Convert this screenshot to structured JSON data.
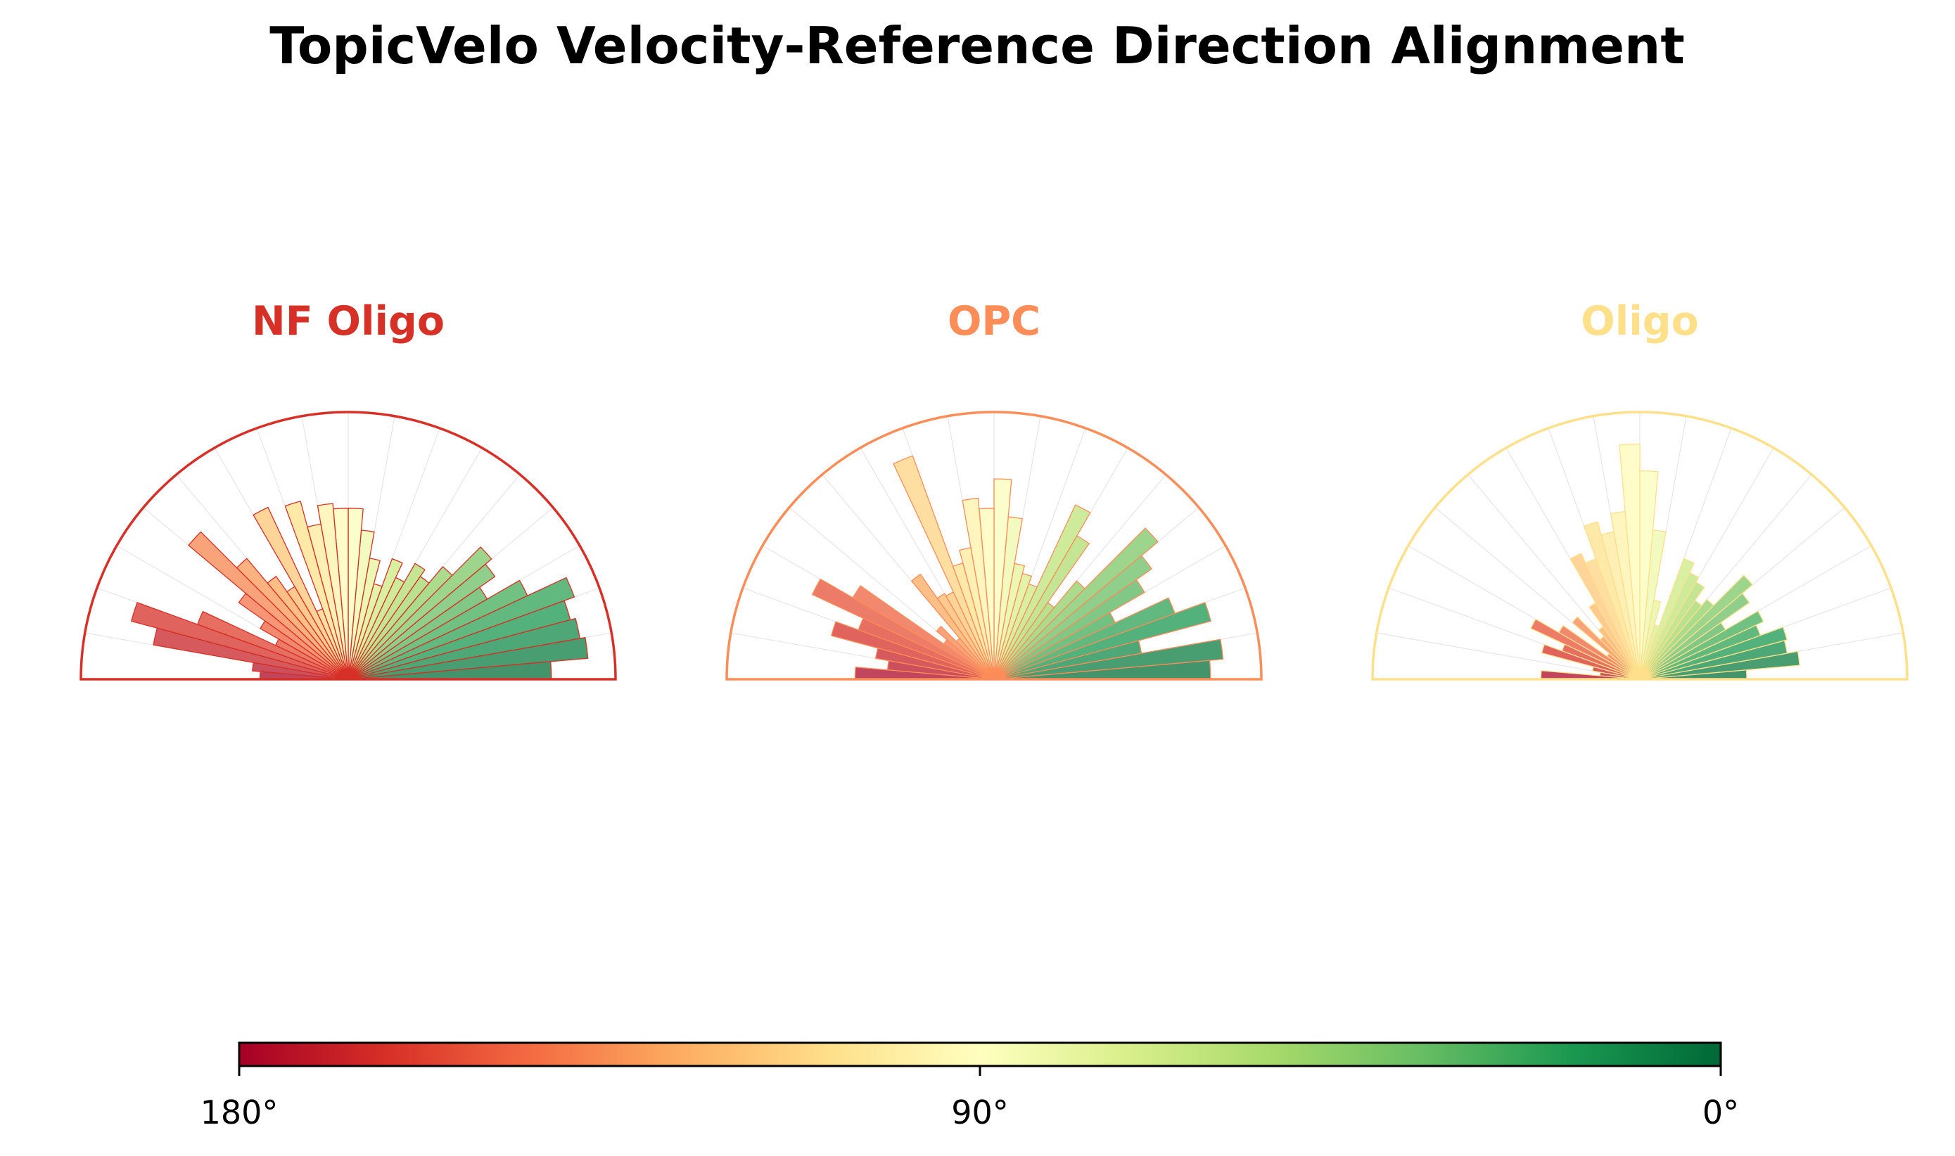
{
  "chart_data": {
    "type": "polar-bar",
    "title": "TopicVelo Velocity-Reference Direction Alignment",
    "angle_unit": "degrees",
    "bin_centers_deg": [
      2.5,
      7.5,
      12.5,
      17.5,
      22.5,
      27.5,
      32.5,
      37.5,
      42.5,
      47.5,
      52.5,
      57.5,
      62.5,
      67.5,
      72.5,
      77.5,
      82.5,
      87.5,
      92.5,
      97.5,
      102.5,
      107.5,
      112.5,
      117.5,
      122.5,
      127.5,
      132.5,
      137.5,
      142.5,
      147.5,
      152.5,
      157.5,
      162.5,
      167.5,
      172.5,
      177.5
    ],
    "radial_max": 1.0,
    "panels": [
      {
        "name": "NF Oligo",
        "color": "#d73027",
        "values": [
          0.76,
          0.9,
          0.88,
          0.86,
          0.9,
          0.74,
          0.6,
          0.67,
          0.7,
          0.55,
          0.47,
          0.5,
          0.42,
          0.48,
          0.37,
          0.46,
          0.56,
          0.64,
          0.64,
          0.66,
          0.59,
          0.69,
          0.28,
          0.71,
          0.4,
          0.47,
          0.59,
          0.78,
          0.5,
          0.38,
          0.3,
          0.6,
          0.84,
          0.74,
          0.36,
          0.33
        ]
      },
      {
        "name": "OPC",
        "color": "#fc8d59",
        "values": [
          0.81,
          0.86,
          0.56,
          0.84,
          0.72,
          0.5,
          0.65,
          0.72,
          0.8,
          0.48,
          0.35,
          0.62,
          0.72,
          0.38,
          0.41,
          0.44,
          0.61,
          0.75,
          0.64,
          0.68,
          0.5,
          0.45,
          0.89,
          0.36,
          0.37,
          0.48,
          0.2,
          0.28,
          0.23,
          0.61,
          0.75,
          0.54,
          0.63,
          0.45,
          0.4,
          0.52
        ]
      },
      {
        "name": "Oligo",
        "color": "#fee08b",
        "values": [
          0.4,
          0.6,
          0.56,
          0.57,
          0.48,
          0.51,
          0.37,
          0.5,
          0.55,
          0.39,
          0.36,
          0.42,
          0.44,
          0.48,
          0.21,
          0.3,
          0.56,
          0.78,
          0.88,
          0.63,
          0.56,
          0.61,
          0.48,
          0.52,
          0.33,
          0.24,
          0.21,
          0.33,
          0.15,
          0.35,
          0.45,
          0.31,
          0.38,
          0.18,
          0.15,
          0.37
        ]
      }
    ],
    "colorbar": {
      "cmap": "RdYlGn_r",
      "stops": [
        "#a50026",
        "#d73027",
        "#f46d43",
        "#fdae61",
        "#fee08b",
        "#ffffbf",
        "#d9ef8b",
        "#a6d96a",
        "#66bd63",
        "#1a9850",
        "#006837"
      ],
      "tick_labels": [
        "180°",
        "90°",
        "0°"
      ]
    }
  }
}
